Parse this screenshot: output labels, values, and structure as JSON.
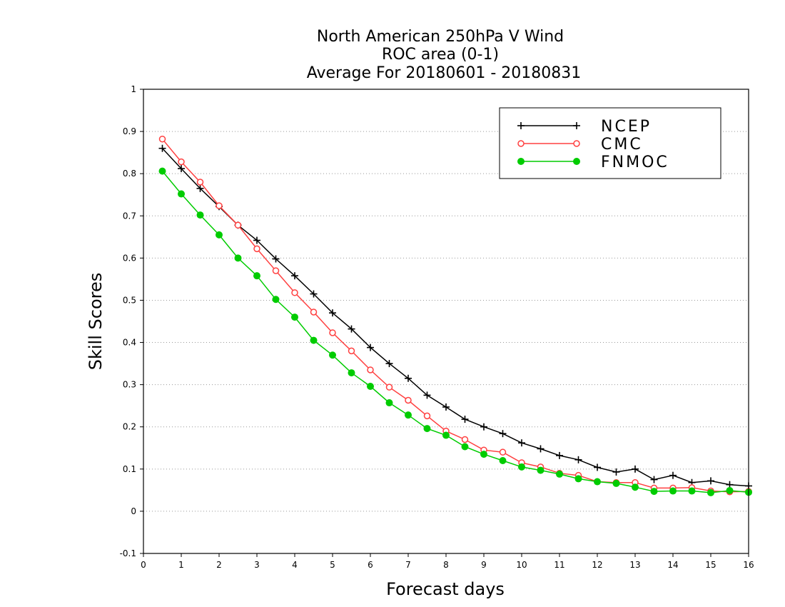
{
  "chart_data": {
    "type": "line",
    "title": [
      "North American 250hPa V Wind",
      "ROC area (0-1)",
      "Average For 20180601 - 20180831"
    ],
    "xlabel": "Forecast days",
    "ylabel": "Skill Scores",
    "xlim": [
      0,
      16
    ],
    "ylim": [
      -0.1,
      1
    ],
    "xticks": [
      0,
      1,
      2,
      3,
      4,
      5,
      6,
      7,
      8,
      9,
      10,
      11,
      12,
      13,
      14,
      15,
      16
    ],
    "yticks": [
      -0.1,
      0,
      0.1,
      0.2,
      0.3,
      0.4,
      0.5,
      0.6,
      0.7,
      0.8,
      0.9,
      1
    ],
    "ytick_labels": [
      "-0.1",
      "0",
      "0.1",
      "0.2",
      "0.3",
      "0.4",
      "0.5",
      "0.6",
      "0.7",
      "0.8",
      "0.9",
      "1"
    ],
    "grid": "horizontal dotted",
    "legend_position": "top-right",
    "x": [
      0.5,
      1,
      1.5,
      2,
      2.5,
      3,
      3.5,
      4,
      4.5,
      5,
      5.5,
      6,
      6.5,
      7,
      7.5,
      8,
      8.5,
      9,
      9.5,
      10,
      10.5,
      11,
      11.5,
      12,
      12.5,
      13,
      13.5,
      14,
      14.5,
      15,
      15.5,
      16
    ],
    "series": [
      {
        "name": "NCEP",
        "color": "#000000",
        "marker": "plus",
        "values": [
          0.86,
          0.812,
          0.765,
          0.722,
          0.678,
          0.642,
          0.598,
          0.558,
          0.515,
          0.47,
          0.432,
          0.388,
          0.35,
          0.315,
          0.275,
          0.247,
          0.218,
          0.2,
          0.184,
          0.162,
          0.148,
          0.132,
          0.122,
          0.104,
          0.093,
          0.1,
          0.075,
          0.085,
          0.068,
          0.072,
          0.063,
          0.06
        ]
      },
      {
        "name": "CMC",
        "color": "#ff4040",
        "marker": "open-circle",
        "values": [
          0.882,
          0.828,
          0.78,
          0.724,
          0.678,
          0.622,
          0.57,
          0.518,
          0.472,
          0.423,
          0.38,
          0.335,
          0.294,
          0.263,
          0.226,
          0.19,
          0.17,
          0.145,
          0.14,
          0.115,
          0.105,
          0.09,
          0.085,
          0.07,
          0.068,
          0.068,
          0.055,
          0.055,
          0.056,
          0.048,
          0.046,
          0.047
        ]
      },
      {
        "name": "FNMOC",
        "color": "#00cc00",
        "marker": "filled-circle",
        "values": [
          0.806,
          0.752,
          0.702,
          0.655,
          0.6,
          0.558,
          0.502,
          0.46,
          0.405,
          0.37,
          0.328,
          0.296,
          0.257,
          0.228,
          0.196,
          0.18,
          0.153,
          0.135,
          0.12,
          0.105,
          0.097,
          0.088,
          0.077,
          0.07,
          0.066,
          0.057,
          0.047,
          0.048,
          0.048,
          0.044,
          0.049,
          0.045
        ]
      }
    ]
  }
}
